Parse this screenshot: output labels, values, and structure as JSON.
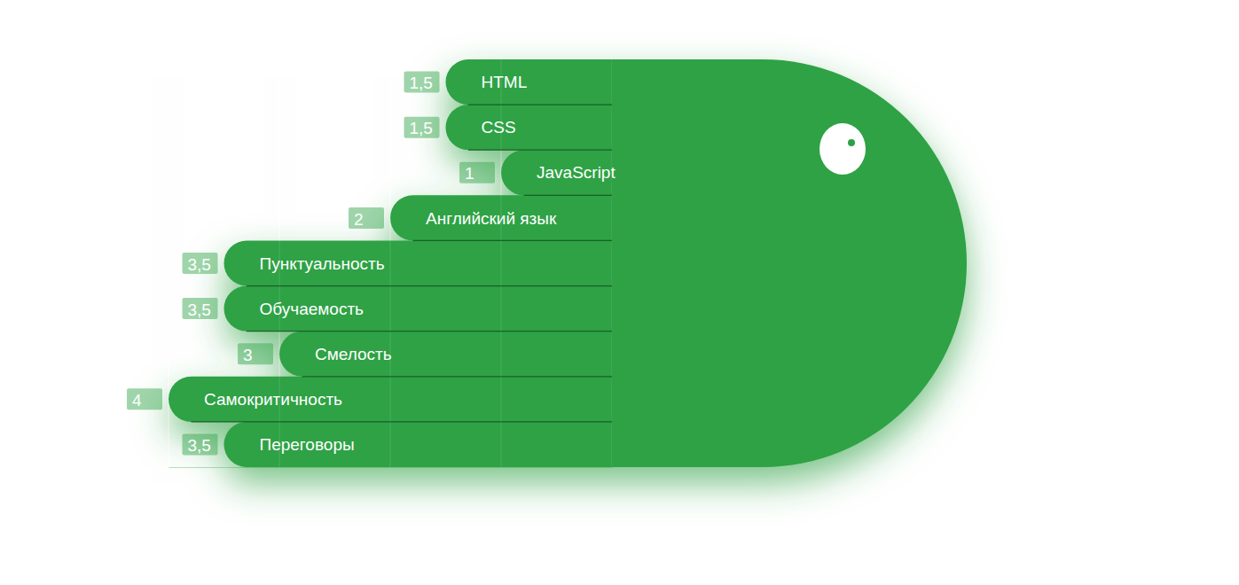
{
  "chart_data": {
    "type": "bar",
    "orientation": "horizontal",
    "categories": [
      "HTML",
      "CSS",
      "JavaScript",
      "Английский язык",
      "Пунктуальность",
      "Обучаемость",
      "Смелость",
      "Самокритичность",
      "Переговоры"
    ],
    "values": [
      1.5,
      1.5,
      1,
      2,
      3.5,
      3.5,
      3,
      4,
      3.5
    ],
    "value_labels": [
      "1,5",
      "1,5",
      "1",
      "2",
      "3,5",
      "3,5",
      "3",
      "4",
      "3,5"
    ],
    "color": "#2da245",
    "xlim": [
      0,
      4
    ],
    "xticks": [
      0,
      1,
      2,
      3,
      4
    ],
    "grid": true,
    "data_labels": true,
    "tick_labels": false
  }
}
